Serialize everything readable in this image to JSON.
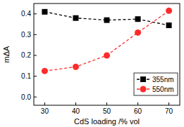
{
  "chart_data": {
    "type": "line",
    "x_label": "CdS loading /% vol",
    "y_label": "mΔA",
    "x": [
      30,
      40,
      50,
      60,
      70
    ],
    "series": [
      {
        "name": "355nm",
        "color": "#000000",
        "marker": "square",
        "line_style": "dashed",
        "values": [
          0.41,
          0.38,
          0.37,
          0.375,
          0.345
        ]
      },
      {
        "name": "550nm",
        "color": "#ff2a2a",
        "marker": "circle",
        "line_style": "dashed",
        "values": [
          0.125,
          0.145,
          0.2,
          0.31,
          0.415
        ]
      }
    ],
    "xlim": [
      26.5,
      73.5
    ],
    "ylim": [
      -0.04,
      0.45
    ],
    "xticks": [
      30,
      40,
      50,
      60,
      70
    ],
    "yticks": [
      {
        "value": 0,
        "label": "0.0"
      },
      0.1,
      0.2,
      0.3,
      0.4
    ],
    "legend": "lower right",
    "grid": false
  }
}
